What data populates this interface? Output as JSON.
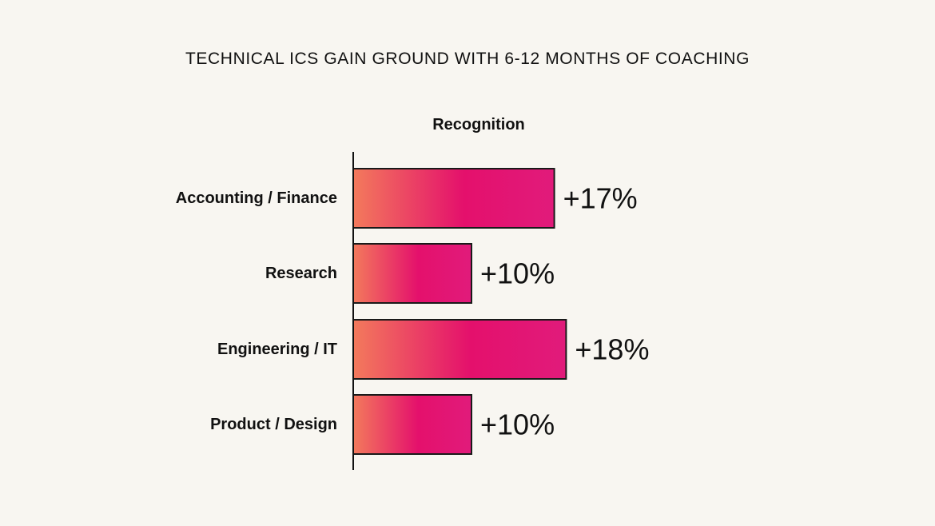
{
  "chart_data": {
    "type": "bar",
    "orientation": "horizontal",
    "title": "TECHNICAL ICS GAIN GROUND WITH 6-12 MONTHS OF COACHING",
    "subtitle": "Recognition",
    "categories": [
      "Accounting / Finance",
      "Research",
      "Engineering / IT",
      "Product / Design"
    ],
    "values": [
      17,
      10,
      18,
      10
    ],
    "value_labels": [
      "+17%",
      "+10%",
      "+18%",
      "+10%"
    ],
    "unit": "%",
    "grid": false,
    "legend": "none",
    "colors": {
      "gradient_start": "#f37a5c",
      "gradient_mid": "#e4106c",
      "gradient_end": "#e11b7b",
      "bar_outline": "#1a1a1a",
      "axis": "#111111",
      "background": "#f8f6f1"
    }
  }
}
